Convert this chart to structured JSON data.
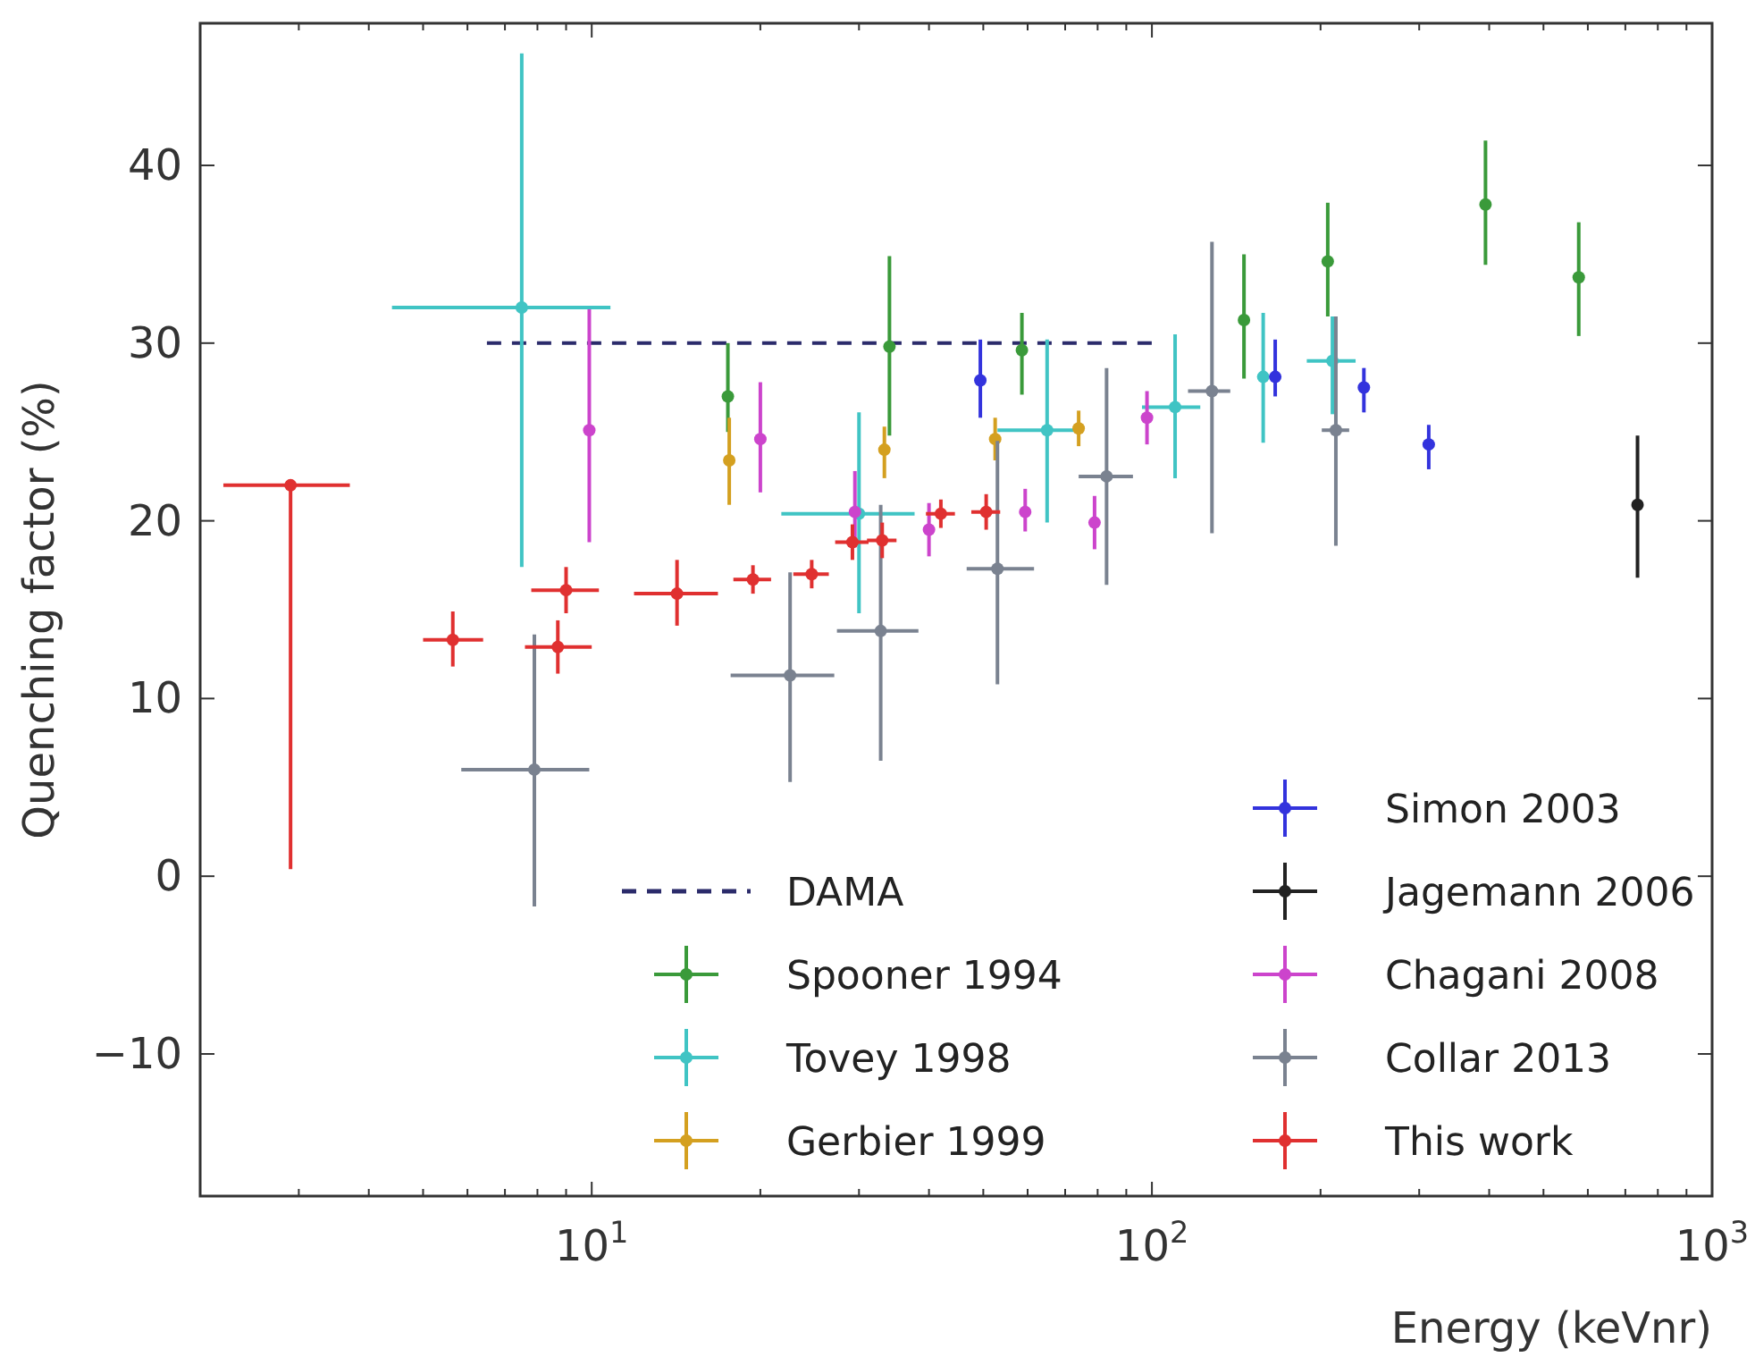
{
  "chart_data": {
    "type": "scatter",
    "xlabel": "Energy (keVnr)",
    "ylabel": "Quenching factor (%)",
    "log": "x",
    "legend": "bottom right",
    "marker": "circle",
    "xlim": [
      2,
      1000
    ],
    "ylim": [
      -18,
      48
    ],
    "xticks": [
      {
        "value": 3,
        "label": null
      },
      {
        "value": 4,
        "label": null
      },
      {
        "value": 5,
        "label": null
      },
      {
        "value": 6,
        "label": null
      },
      {
        "value": 7,
        "label": null
      },
      {
        "value": 8,
        "label": null
      },
      {
        "value": 9,
        "label": null
      },
      {
        "value": 10,
        "label": "10$^{1}$"
      },
      {
        "value": 20,
        "label": null
      },
      {
        "value": 30,
        "label": null
      },
      {
        "value": 40,
        "label": null
      },
      {
        "value": 50,
        "label": null
      },
      {
        "value": 60,
        "label": null
      },
      {
        "value": 70,
        "label": null
      },
      {
        "value": 80,
        "label": null
      },
      {
        "value": 90,
        "label": null
      },
      {
        "value": 100,
        "label": "10$^{2}$"
      },
      {
        "value": 200,
        "label": null
      },
      {
        "value": 300,
        "label": null
      },
      {
        "value": 400,
        "label": null
      },
      {
        "value": 500,
        "label": null
      },
      {
        "value": 600,
        "label": null
      },
      {
        "value": 700,
        "label": null
      },
      {
        "value": 800,
        "label": null
      },
      {
        "value": 900,
        "label": null
      },
      {
        "value": 1000,
        "label": "10$^{3}$"
      }
    ],
    "yticks": [
      {
        "value": -10,
        "label": "−10"
      },
      0,
      10,
      20,
      30,
      40
    ],
    "series": [
      {
        "name": "DAMA",
        "type": "line",
        "line_style": "dashed",
        "marker": "none",
        "color": "#2b2b6b",
        "x": [
          6.5,
          100
        ],
        "values": [
          30,
          30
        ]
      },
      {
        "name": "Spooner 1994",
        "color": "#3a9a3a",
        "x": [
          17.5,
          34,
          58.6,
          146,
          206,
          394,
          578
        ],
        "values": [
          27.0,
          29.8,
          29.6,
          31.3,
          34.6,
          37.8,
          33.7
        ],
        "errors": [
          [
            25,
            30
          ],
          [
            24.8,
            34.9
          ],
          [
            27.1,
            31.7
          ],
          [
            28,
            35
          ],
          [
            31.5,
            37.9
          ],
          [
            34.4,
            41.4
          ],
          [
            30.4,
            36.8
          ]
        ]
      },
      {
        "name": "Tovey 1998",
        "color": "#40c4c4",
        "x": [
          7.5,
          30,
          65,
          110,
          158,
          210
        ],
        "values": [
          32.0,
          20.4,
          25.1,
          26.4,
          28.1,
          29.0
        ],
        "errors": [
          [
            17.4,
            46.3
          ],
          [
            14.8,
            26.1
          ],
          [
            19.9,
            30.2
          ],
          [
            22.4,
            30.5
          ],
          [
            24.4,
            31.7
          ],
          [
            26,
            31.5
          ]
        ],
        "xerrors": [
          [
            4.4,
            10.8
          ],
          [
            21.8,
            37.7
          ],
          [
            53,
            74
          ],
          [
            96,
            122
          ],
          null,
          [
            189,
            231
          ]
        ]
      },
      {
        "name": "Gerbier 1999",
        "color": "#d4a020",
        "x": [
          17.6,
          33.3,
          52.5,
          74
        ],
        "values": [
          23.4,
          24.0,
          24.6,
          25.2
        ],
        "errors": [
          [
            20.9,
            25.8
          ],
          [
            22.4,
            25.3
          ],
          [
            23.4,
            25.8
          ],
          1
        ]
      },
      {
        "name": "Simon 2003",
        "color": "#3333dd",
        "x": [
          49.4,
          166,
          239,
          312
        ],
        "values": [
          27.9,
          28.1,
          27.5,
          24.3
        ],
        "errors": [
          [
            25.8,
            30.2
          ],
          [
            27.0,
            30.2
          ],
          [
            26.1,
            28.6
          ],
          [
            22.9,
            25.4
          ]
        ]
      },
      {
        "name": "Jagemann 2006",
        "color": "#222222",
        "x": [
          736
        ],
        "values": [
          20.9
        ],
        "errors": [
          [
            16.8,
            24.8
          ]
        ]
      },
      {
        "name": "Chagani 2008",
        "color": "#cc44cc",
        "x": [
          9.9,
          20,
          29.5,
          40,
          59.4,
          79,
          98
        ],
        "values": [
          25.1,
          24.6,
          20.5,
          19.5,
          20.5,
          19.9,
          25.8
        ],
        "errors": [
          [
            18.8,
            31.9
          ],
          [
            21.6,
            27.8
          ],
          [
            18.5,
            22.8
          ],
          1.5,
          [
            19.4,
            21.8
          ],
          1.5,
          1.5
        ]
      },
      {
        "name": "Collar 2013",
        "color": "#7a8290",
        "x": [
          7.9,
          22.6,
          32.8,
          53,
          83,
          128,
          213
        ],
        "values": [
          6.0,
          11.3,
          13.8,
          17.3,
          22.5,
          27.3,
          25.1
        ],
        "errors": [
          [
            -1.7,
            13.6
          ],
          [
            5.3,
            17.1
          ],
          [
            6.5,
            20.9
          ],
          [
            10.8,
            24.5
          ],
          [
            16.4,
            28.6
          ],
          [
            19.3,
            35.7
          ],
          [
            18.6,
            31.5
          ]
        ],
        "xerrors": [
          [
            5.85,
            9.9
          ],
          [
            17.7,
            27.1
          ],
          [
            27.4,
            38.3
          ],
          [
            46.7,
            61.6
          ],
          [
            74,
            92.5
          ],
          [
            116,
            138
          ],
          [
            201,
            225
          ]
        ]
      },
      {
        "name": "This work",
        "color": "#e03030",
        "x": [
          2.9,
          5.65,
          8.7,
          9.0,
          14.2,
          19.4,
          24.7,
          29.2,
          33,
          42,
          50.6
        ],
        "values": [
          22,
          13.3,
          12.9,
          16.1,
          15.9,
          16.7,
          17.0,
          18.8,
          18.9,
          20.4,
          20.5
        ],
        "errors": [
          [
            0.4,
            22
          ],
          [
            11.8,
            14.9
          ],
          1.5,
          1.3,
          [
            14.1,
            17.8
          ],
          0.8,
          0.8,
          1,
          1,
          0.8,
          1
        ],
        "xerrors": [
          [
            2.2,
            3.7
          ],
          [
            5.0,
            6.4
          ],
          [
            7.6,
            10
          ],
          [
            7.8,
            10.3
          ],
          [
            11.9,
            16.8
          ],
          1.5,
          1.8,
          2,
          2,
          2.5,
          3
        ]
      }
    ]
  }
}
